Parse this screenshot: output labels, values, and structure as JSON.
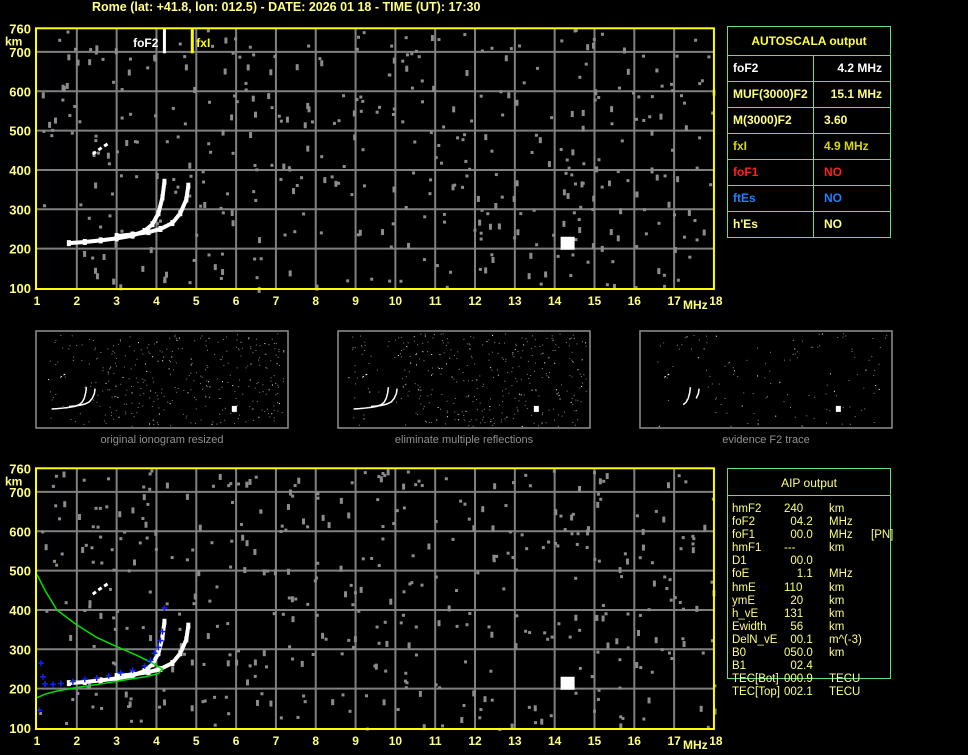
{
  "header": {
    "title": "Rome (lat: +41.8, lon: 012.5) - DATE: 2026 01 18 - TIME (UT): 17:30"
  },
  "colors": {
    "axis": "#ffff00",
    "tick_text": "#ffff80",
    "grid": "#808080",
    "noise": "#8c8c8c",
    "trace": "#ffffff",
    "profile": "#00e000",
    "aip_points": "#1020ff",
    "table_border": "#60e080"
  },
  "chart_data": [
    {
      "type": "scatter",
      "name": "top-ionogram",
      "xlabel": "MHz",
      "ylabel": "km",
      "xlim": [
        1,
        18
      ],
      "ylim": [
        100,
        760
      ],
      "xticks": [
        "1",
        "2",
        "3",
        "4",
        "5",
        "6",
        "7",
        "8",
        "9",
        "10",
        "11",
        "12",
        "13",
        "14",
        "15",
        "16",
        "17",
        "18"
      ],
      "yticks": [
        "100",
        "200",
        "300",
        "400",
        "500",
        "600",
        "700",
        "760"
      ],
      "grid": true,
      "markers": [
        {
          "label": "foF2",
          "x": 4.2,
          "color": "#ffffff"
        },
        {
          "label": "fxI",
          "x": 4.9,
          "color": "#ffff00"
        }
      ],
      "ordinary_trace": [
        [
          1.8,
          214
        ],
        [
          2.2,
          217
        ],
        [
          2.6,
          221
        ],
        [
          3.0,
          226
        ],
        [
          3.4,
          233
        ],
        [
          3.7,
          245
        ],
        [
          3.9,
          262
        ],
        [
          4.05,
          290
        ],
        [
          4.15,
          330
        ],
        [
          4.2,
          370
        ]
      ],
      "extraordinary_trace": [
        [
          3.0,
          232
        ],
        [
          3.4,
          236
        ],
        [
          3.8,
          242
        ],
        [
          4.1,
          250
        ],
        [
          4.4,
          265
        ],
        [
          4.6,
          290
        ],
        [
          4.75,
          325
        ],
        [
          4.8,
          360
        ]
      ],
      "second_hop_trace": [
        [
          2.4,
          440
        ],
        [
          2.6,
          455
        ],
        [
          2.8,
          468
        ]
      ],
      "interference_block": [
        [
          14.3,
          215
        ]
      ]
    },
    {
      "type": "scatter",
      "name": "bottom-ionogram",
      "xlabel": "MHz",
      "ylabel": "km",
      "xlim": [
        1,
        18
      ],
      "ylim": [
        100,
        760
      ],
      "xticks": [
        "1",
        "2",
        "3",
        "4",
        "5",
        "6",
        "7",
        "8",
        "9",
        "10",
        "11",
        "12",
        "13",
        "14",
        "15",
        "16",
        "17",
        "18"
      ],
      "yticks": [
        "100",
        "200",
        "300",
        "400",
        "500",
        "600",
        "700",
        "760"
      ],
      "grid": true,
      "ordinary_trace": [
        [
          1.8,
          214
        ],
        [
          2.2,
          217
        ],
        [
          2.6,
          221
        ],
        [
          3.0,
          226
        ],
        [
          3.4,
          233
        ],
        [
          3.7,
          245
        ],
        [
          3.9,
          262
        ],
        [
          4.05,
          290
        ],
        [
          4.15,
          330
        ],
        [
          4.2,
          370
        ]
      ],
      "extraordinary_trace": [
        [
          3.0,
          232
        ],
        [
          3.4,
          236
        ],
        [
          3.8,
          242
        ],
        [
          4.1,
          250
        ],
        [
          4.4,
          265
        ],
        [
          4.6,
          290
        ],
        [
          4.75,
          325
        ],
        [
          4.8,
          360
        ]
      ],
      "second_hop_trace": [
        [
          2.4,
          440
        ],
        [
          2.6,
          455
        ],
        [
          2.8,
          468
        ]
      ],
      "interference_block": [
        [
          14.3,
          215
        ]
      ],
      "aip_points": [
        [
          1.1,
          265
        ],
        [
          1.15,
          230
        ],
        [
          1.05,
          145
        ],
        [
          1.2,
          212
        ],
        [
          1.4,
          211
        ],
        [
          1.6,
          213
        ],
        [
          1.9,
          218
        ],
        [
          2.2,
          224
        ],
        [
          2.5,
          227
        ],
        [
          2.8,
          233
        ],
        [
          3.1,
          240
        ],
        [
          3.4,
          247
        ],
        [
          3.7,
          258
        ],
        [
          3.85,
          272
        ],
        [
          3.95,
          290
        ],
        [
          4.05,
          305
        ],
        [
          4.1,
          322
        ],
        [
          4.15,
          345
        ],
        [
          4.2,
          405
        ]
      ],
      "profile_curve": [
        [
          1.0,
          490
        ],
        [
          1.2,
          450
        ],
        [
          1.5,
          400
        ],
        [
          2.0,
          362
        ],
        [
          2.5,
          330
        ],
        [
          3.0,
          307
        ],
        [
          3.5,
          285
        ],
        [
          3.9,
          265
        ],
        [
          4.15,
          250
        ],
        [
          4.05,
          238
        ],
        [
          3.7,
          230
        ],
        [
          3.2,
          222
        ],
        [
          2.6,
          212
        ],
        [
          2.0,
          203
        ],
        [
          1.5,
          194
        ],
        [
          1.2,
          186
        ],
        [
          1.0,
          177
        ]
      ]
    }
  ],
  "autoscala": {
    "title": "AUTOSCALA output",
    "rows": [
      {
        "key": "foF2",
        "value": "4.2 MHz",
        "color": "#ffffff"
      },
      {
        "key": "MUF(3000)F2",
        "value": "15.1 MHz",
        "color": "#ffff80"
      },
      {
        "key": "M(3000)F2",
        "value": "3.60",
        "color": "#ffff80"
      },
      {
        "key": "fxI",
        "value": "4.9 MHz",
        "color": "#d8d800"
      },
      {
        "key": "foF1",
        "value": "NO",
        "color": "#ff2020"
      },
      {
        "key": "ftEs",
        "value": "NO",
        "color": "#2080ff"
      },
      {
        "key": "h'Es",
        "value": "NO",
        "color": "#ffff80"
      }
    ]
  },
  "thumbnails": [
    {
      "caption": "original ionogram resized"
    },
    {
      "caption": "eliminate multiple reflections"
    },
    {
      "caption": "evidence F2 trace"
    }
  ],
  "aip": {
    "title": "AIP output",
    "rows": [
      {
        "k": "hmF2",
        "v": "240",
        "u": "km",
        "x": ""
      },
      {
        "k": "foF2",
        "v": "  04.2",
        "u": "MHz",
        "x": ""
      },
      {
        "k": "foF1",
        "v": "  00.0",
        "u": "MHz",
        "x": "[PN]"
      },
      {
        "k": "hmF1",
        "v": "---",
        "u": "km",
        "x": ""
      },
      {
        "k": "D1",
        "v": "  00.0",
        "u": "",
        "x": ""
      },
      {
        "k": "foE",
        "v": "    1.1",
        "u": "MHz",
        "x": ""
      },
      {
        "k": "hmE",
        "v": "110",
        "u": "km",
        "x": ""
      },
      {
        "k": "ymE",
        "v": "  20",
        "u": "km",
        "x": ""
      },
      {
        "k": "h_vE",
        "v": "131",
        "u": "km",
        "x": ""
      },
      {
        "k": "Ewidth",
        "v": "  56",
        "u": "km",
        "x": ""
      },
      {
        "k": "DelN_vE",
        "v": "  00.1",
        "u": "m^(-3)",
        "x": ""
      },
      {
        "k": "B0",
        "v": "050.0",
        "u": "km",
        "x": ""
      },
      {
        "k": "B1",
        "v": "  02.4",
        "u": "",
        "x": ""
      },
      {
        "k": "TEC[Bot]",
        "v": "000.9",
        "u": "TECU",
        "x": ""
      },
      {
        "k": "TEC[Top]",
        "v": "002.1",
        "u": "TECU",
        "x": ""
      }
    ]
  }
}
